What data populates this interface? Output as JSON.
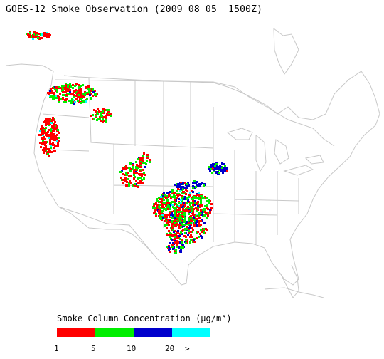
{
  "title": "GOES-12 Smoke Observation (2009 08 05  1500Z)",
  "legend": {
    "title": "Smoke Column Concentration (µg/m³)",
    "colors": [
      "#ff0000",
      "#00ee00",
      "#0000cc",
      "#00ffff"
    ],
    "ticks": [
      "1",
      "5",
      "10",
      "20",
      ">"
    ]
  }
}
